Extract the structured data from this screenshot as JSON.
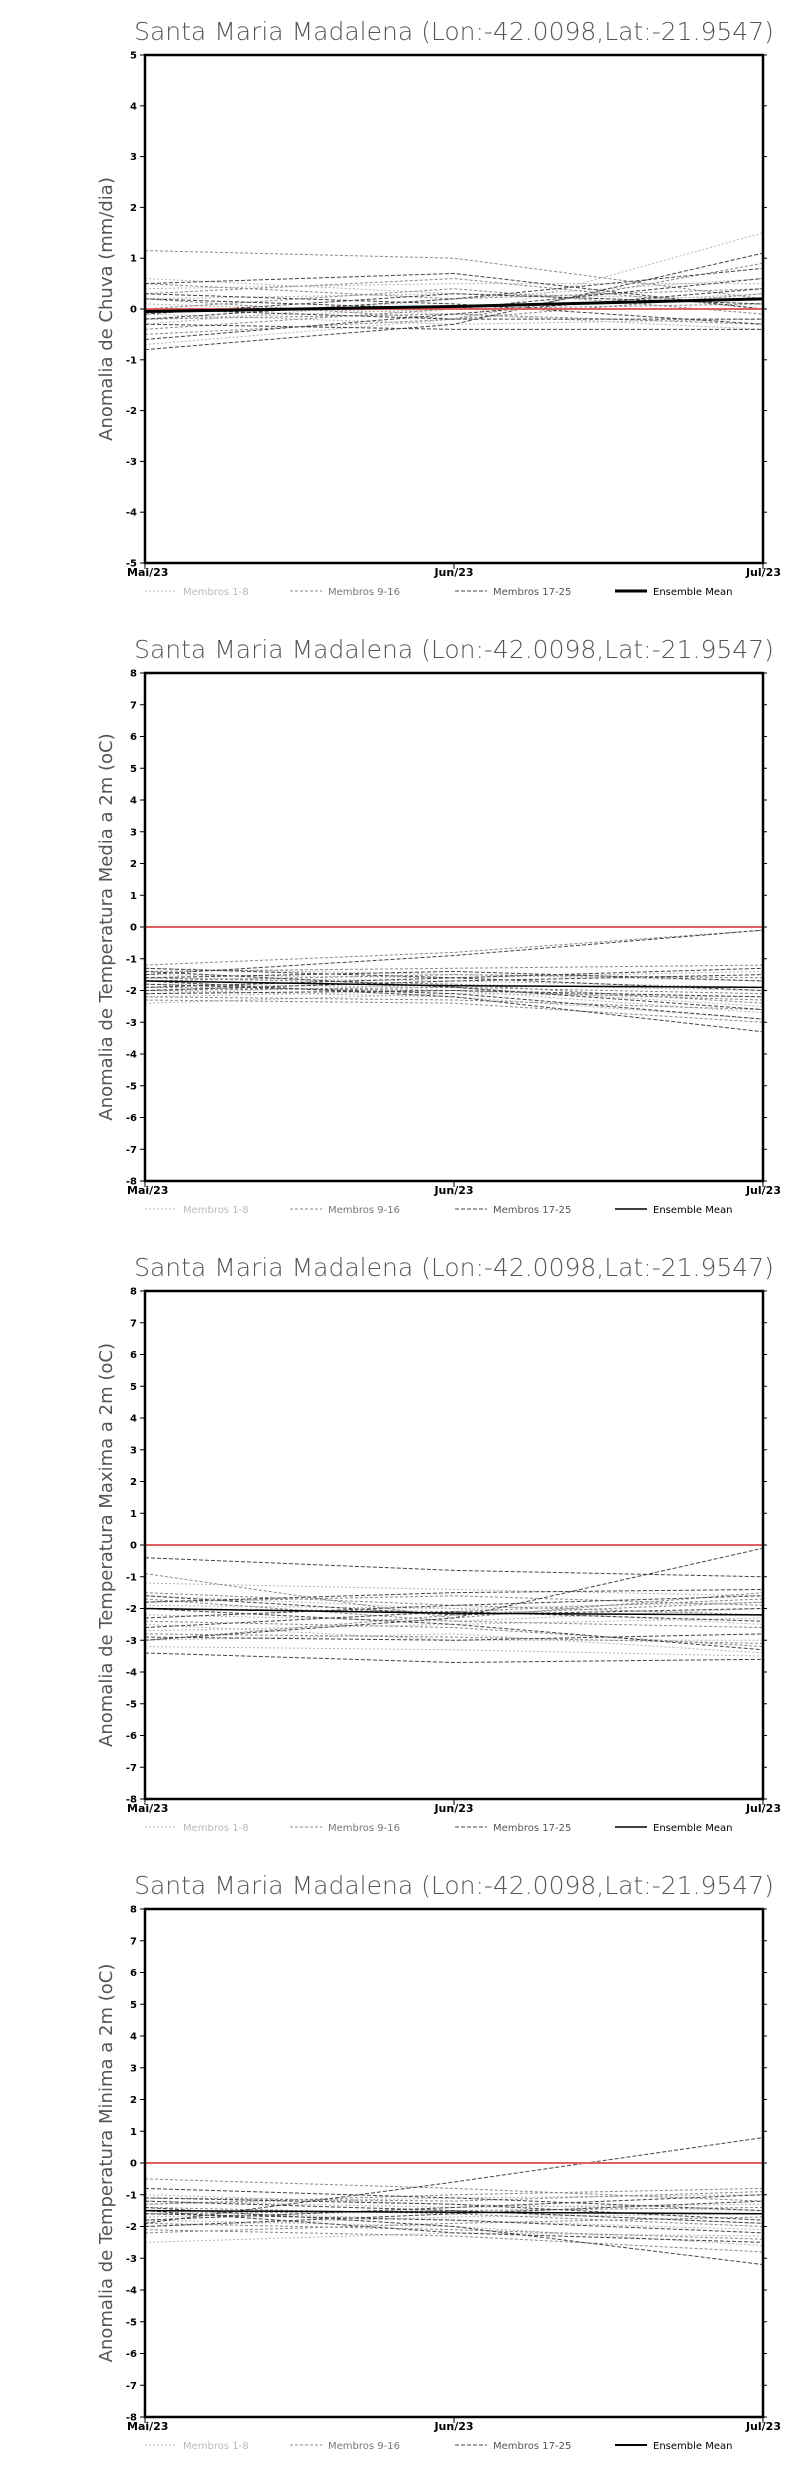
{
  "legend": {
    "items": [
      {
        "label": "Membros 1-8",
        "color": "#bbbbbb",
        "dash": "2,2",
        "width": 1
      },
      {
        "label": "Membros 9-16",
        "color": "#888888",
        "dash": "3,2",
        "width": 1
      },
      {
        "label": "Membros 17-25",
        "color": "#444444",
        "dash": "4,2",
        "width": 1
      },
      {
        "label": "Ensemble Mean",
        "color": "#000000",
        "dash": "",
        "width": 2
      }
    ]
  },
  "chart_data": [
    {
      "type": "line",
      "title": "Santa Maria Madalena (Lon:-42.0098,Lat:-21.9547)",
      "ylabel": "Anomalia de Chuva (mm/dia)",
      "xlabel": "",
      "categories": [
        "Mai/23",
        "Jun/23",
        "Jul/23"
      ],
      "ylim": [
        -5,
        5
      ],
      "yticks": [
        -5,
        -4,
        -3,
        -2,
        -1,
        0,
        1,
        2,
        3,
        4,
        5
      ],
      "zero_line_color": "#e06060",
      "ensemble_mean": [
        -0.05,
        0.05,
        0.2
      ],
      "ensemble_mean_width": 3,
      "legend_mean_width": 3,
      "series": [
        {
          "values": [
            -0.7,
            -0.2,
            1.5
          ],
          "group": 1
        },
        {
          "values": [
            0.4,
            0.5,
            0.5
          ],
          "group": 1
        },
        {
          "values": [
            -0.2,
            0.0,
            0.3
          ],
          "group": 1
        },
        {
          "values": [
            0.2,
            0.3,
            0.1
          ],
          "group": 1
        },
        {
          "values": [
            -0.1,
            -0.3,
            -0.2
          ],
          "group": 1
        },
        {
          "values": [
            0.6,
            0.3,
            0.2
          ],
          "group": 1
        },
        {
          "values": [
            -0.3,
            0.2,
            0.6
          ],
          "group": 1
        },
        {
          "values": [
            0.1,
            -0.1,
            -0.4
          ],
          "group": 1
        },
        {
          "values": [
            1.15,
            1.0,
            0.2
          ],
          "group": 2
        },
        {
          "values": [
            -0.5,
            -0.2,
            0.9
          ],
          "group": 2
        },
        {
          "values": [
            0.3,
            0.6,
            0.0
          ],
          "group": 2
        },
        {
          "values": [
            -0.2,
            -0.1,
            -0.3
          ],
          "group": 2
        },
        {
          "values": [
            0.5,
            0.2,
            0.4
          ],
          "group": 2
        },
        {
          "values": [
            -0.4,
            0.0,
            0.1
          ],
          "group": 2
        },
        {
          "values": [
            0.0,
            0.4,
            -0.1
          ],
          "group": 2
        },
        {
          "values": [
            0.2,
            -0.2,
            0.3
          ],
          "group": 2
        },
        {
          "values": [
            -0.8,
            -0.3,
            1.1
          ],
          "group": 3
        },
        {
          "values": [
            0.5,
            0.7,
            0.0
          ],
          "group": 3
        },
        {
          "values": [
            -0.3,
            -0.4,
            -0.4
          ],
          "group": 3
        },
        {
          "values": [
            0.2,
            0.0,
            0.6
          ],
          "group": 3
        },
        {
          "values": [
            -0.1,
            0.3,
            0.1
          ],
          "group": 3
        },
        {
          "values": [
            0.0,
            -0.2,
            -0.2
          ],
          "group": 3
        },
        {
          "values": [
            -0.6,
            -0.1,
            0.4
          ],
          "group": 3
        },
        {
          "values": [
            0.3,
            0.1,
            -0.3
          ],
          "group": 3
        },
        {
          "values": [
            -0.2,
            0.2,
            0.8
          ],
          "group": 3
        }
      ]
    },
    {
      "type": "line",
      "title": "Santa Maria Madalena (Lon:-42.0098,Lat:-21.9547)",
      "ylabel": "Anomalia de Temperatura Media a 2m (oC)",
      "xlabel": "",
      "categories": [
        "Mai/23",
        "Jun/23",
        "Jul/23"
      ],
      "ylim": [
        -8,
        8
      ],
      "yticks": [
        -8,
        -7,
        -6,
        -5,
        -4,
        -3,
        -2,
        -1,
        0,
        1,
        2,
        3,
        4,
        5,
        6,
        7,
        8
      ],
      "zero_line_color": "#e06060",
      "ensemble_mean": [
        -1.7,
        -1.85,
        -1.9
      ],
      "ensemble_mean_width": 1.5,
      "legend_mean_width": 1.5,
      "series": [
        {
          "values": [
            -2.2,
            -2.0,
            -2.7
          ],
          "group": 1
        },
        {
          "values": [
            -1.5,
            -1.6,
            -1.4
          ],
          "group": 1
        },
        {
          "values": [
            -2.0,
            -2.2,
            -2.9
          ],
          "group": 1
        },
        {
          "values": [
            -1.3,
            -1.5,
            -1.7
          ],
          "group": 1
        },
        {
          "values": [
            -2.4,
            -2.1,
            -2.2
          ],
          "group": 1
        },
        {
          "values": [
            -1.8,
            -1.9,
            -2.5
          ],
          "group": 1
        },
        {
          "values": [
            -1.6,
            -1.7,
            -1.9
          ],
          "group": 1
        },
        {
          "values": [
            -2.1,
            -1.8,
            -2.0
          ],
          "group": 1
        },
        {
          "values": [
            -1.2,
            -0.8,
            -0.1
          ],
          "group": 2
        },
        {
          "values": [
            -2.3,
            -2.4,
            -3.0
          ],
          "group": 2
        },
        {
          "values": [
            -1.7,
            -1.5,
            -1.6
          ],
          "group": 2
        },
        {
          "values": [
            -1.9,
            -2.0,
            -2.3
          ],
          "group": 2
        },
        {
          "values": [
            -1.4,
            -1.3,
            -1.2
          ],
          "group": 2
        },
        {
          "values": [
            -2.0,
            -1.9,
            -2.1
          ],
          "group": 2
        },
        {
          "values": [
            -1.6,
            -1.8,
            -2.4
          ],
          "group": 2
        },
        {
          "values": [
            -2.2,
            -2.3,
            -2.6
          ],
          "group": 2
        },
        {
          "values": [
            -1.5,
            -0.9,
            -0.1
          ],
          "group": 3
        },
        {
          "values": [
            -1.7,
            -2.2,
            -3.3
          ],
          "group": 3
        },
        {
          "values": [
            -1.9,
            -1.6,
            -1.3
          ],
          "group": 3
        },
        {
          "values": [
            -1.4,
            -1.9,
            -2.6
          ],
          "group": 3
        },
        {
          "values": [
            -2.1,
            -2.0,
            -2.2
          ],
          "group": 3
        },
        {
          "values": [
            -1.6,
            -1.4,
            -1.7
          ],
          "group": 3
        },
        {
          "values": [
            -1.8,
            -2.1,
            -2.9
          ],
          "group": 3
        },
        {
          "values": [
            -2.0,
            -1.7,
            -1.5
          ],
          "group": 3
        },
        {
          "values": [
            -1.3,
            -1.6,
            -2.0
          ],
          "group": 3
        }
      ]
    },
    {
      "type": "line",
      "title": "Santa Maria Madalena (Lon:-42.0098,Lat:-21.9547)",
      "ylabel": "Anomalia de Temperatura Maxima a 2m (oC)",
      "xlabel": "",
      "categories": [
        "Mai/23",
        "Jun/23",
        "Jul/23"
      ],
      "ylim": [
        -8,
        8
      ],
      "yticks": [
        -8,
        -7,
        -6,
        -5,
        -4,
        -3,
        -2,
        -1,
        0,
        1,
        2,
        3,
        4,
        5,
        6,
        7,
        8
      ],
      "zero_line_color": "#e06060",
      "ensemble_mean": [
        -2.0,
        -2.15,
        -2.2
      ],
      "ensemble_mean_width": 1.5,
      "legend_mean_width": 1.5,
      "series": [
        {
          "values": [
            -3.0,
            -2.8,
            -3.4
          ],
          "group": 1
        },
        {
          "values": [
            -1.6,
            -2.0,
            -1.8
          ],
          "group": 1
        },
        {
          "values": [
            -2.5,
            -3.0,
            -3.0
          ],
          "group": 1
        },
        {
          "values": [
            -1.2,
            -1.4,
            -1.6
          ],
          "group": 1
        },
        {
          "values": [
            -2.2,
            -2.4,
            -2.0
          ],
          "group": 1
        },
        {
          "values": [
            -3.2,
            -3.3,
            -3.5
          ],
          "group": 1
        },
        {
          "values": [
            -1.9,
            -2.0,
            -2.5
          ],
          "group": 1
        },
        {
          "values": [
            -2.7,
            -2.5,
            -2.3
          ],
          "group": 1
        },
        {
          "values": [
            -0.9,
            -2.3,
            -1.5
          ],
          "group": 2
        },
        {
          "values": [
            -3.0,
            -2.2,
            -1.8
          ],
          "group": 2
        },
        {
          "values": [
            -1.8,
            -1.6,
            -1.9
          ],
          "group": 2
        },
        {
          "values": [
            -2.4,
            -2.6,
            -3.2
          ],
          "group": 2
        },
        {
          "values": [
            -1.5,
            -1.9,
            -2.2
          ],
          "group": 2
        },
        {
          "values": [
            -2.0,
            -2.1,
            -1.7
          ],
          "group": 2
        },
        {
          "values": [
            -2.8,
            -2.9,
            -3.1
          ],
          "group": 2
        },
        {
          "values": [
            -1.7,
            -2.4,
            -2.6
          ],
          "group": 2
        },
        {
          "values": [
            -0.4,
            -0.8,
            -1.0
          ],
          "group": 3
        },
        {
          "values": [
            -3.0,
            -2.3,
            -0.1
          ],
          "group": 3
        },
        {
          "values": [
            -3.4,
            -3.7,
            -3.6
          ],
          "group": 3
        },
        {
          "values": [
            -2.0,
            -2.5,
            -3.3
          ],
          "group": 3
        },
        {
          "values": [
            -1.6,
            -2.2,
            -2.0
          ],
          "group": 3
        },
        {
          "values": [
            -2.3,
            -1.9,
            -1.6
          ],
          "group": 3
        },
        {
          "values": [
            -2.9,
            -3.0,
            -2.8
          ],
          "group": 3
        },
        {
          "values": [
            -1.8,
            -1.5,
            -1.4
          ],
          "group": 3
        },
        {
          "values": [
            -2.6,
            -2.1,
            -2.4
          ],
          "group": 3
        }
      ]
    },
    {
      "type": "line",
      "title": "Santa Maria Madalena (Lon:-42.0098,Lat:-21.9547)",
      "ylabel": "Anomalia de Temperatura Minima a 2m (oC)",
      "xlabel": "",
      "categories": [
        "Mai/23",
        "Jun/23",
        "Jul/23"
      ],
      "ylim": [
        -8,
        8
      ],
      "yticks": [
        -8,
        -7,
        -6,
        -5,
        -4,
        -3,
        -2,
        -1,
        0,
        1,
        2,
        3,
        4,
        5,
        6,
        7,
        8
      ],
      "zero_line_color": "#e06060",
      "ensemble_mean": [
        -1.5,
        -1.55,
        -1.6
      ],
      "ensemble_mean_width": 1.5,
      "legend_mean_width": 2,
      "series": [
        {
          "values": [
            -2.5,
            -2.2,
            -2.3
          ],
          "group": 1
        },
        {
          "values": [
            -1.3,
            -1.1,
            -1.0
          ],
          "group": 1
        },
        {
          "values": [
            -1.8,
            -2.0,
            -2.6
          ],
          "group": 1
        },
        {
          "values": [
            -1.0,
            -1.3,
            -1.5
          ],
          "group": 1
        },
        {
          "values": [
            -2.0,
            -1.7,
            -1.6
          ],
          "group": 1
        },
        {
          "values": [
            -1.5,
            -1.8,
            -2.1
          ],
          "group": 1
        },
        {
          "values": [
            -1.2,
            -1.4,
            -1.3
          ],
          "group": 1
        },
        {
          "values": [
            -1.7,
            -1.5,
            -1.9
          ],
          "group": 1
        },
        {
          "values": [
            -0.5,
            -0.8,
            -1.2
          ],
          "group": 2
        },
        {
          "values": [
            -2.2,
            -1.9,
            -1.7
          ],
          "group": 2
        },
        {
          "values": [
            -1.4,
            -1.6,
            -2.0
          ],
          "group": 2
        },
        {
          "values": [
            -1.9,
            -2.1,
            -2.4
          ],
          "group": 2
        },
        {
          "values": [
            -1.1,
            -1.2,
            -0.9
          ],
          "group": 2
        },
        {
          "values": [
            -1.6,
            -1.5,
            -1.4
          ],
          "group": 2
        },
        {
          "values": [
            -2.1,
            -2.3,
            -2.8
          ],
          "group": 2
        },
        {
          "values": [
            -1.3,
            -1.0,
            -0.8
          ],
          "group": 2
        },
        {
          "values": [
            -1.9,
            -0.6,
            0.8
          ],
          "group": 3
        },
        {
          "values": [
            -1.4,
            -2.0,
            -3.2
          ],
          "group": 3
        },
        {
          "values": [
            -0.8,
            -1.1,
            -1.5
          ],
          "group": 3
        },
        {
          "values": [
            -1.6,
            -1.8,
            -2.2
          ],
          "group": 3
        },
        {
          "values": [
            -2.0,
            -1.6,
            -1.2
          ],
          "group": 3
        },
        {
          "values": [
            -1.2,
            -1.5,
            -1.9
          ],
          "group": 3
        },
        {
          "values": [
            -1.8,
            -1.4,
            -1.0
          ],
          "group": 3
        },
        {
          "values": [
            -1.5,
            -2.2,
            -2.5
          ],
          "group": 3
        },
        {
          "values": [
            -1.1,
            -1.3,
            -1.8
          ],
          "group": 3
        }
      ]
    }
  ]
}
